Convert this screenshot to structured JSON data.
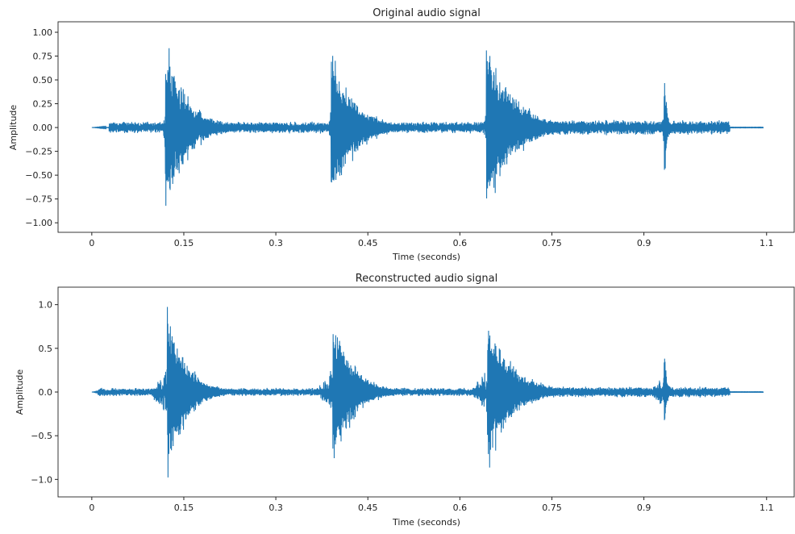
{
  "chart_data": [
    {
      "type": "line",
      "title": "Original audio signal",
      "xlabel": "Time (seconds)",
      "ylabel": "Amplitude",
      "xlim": [
        -0.055,
        1.145
      ],
      "ylim": [
        -1.1,
        1.11
      ],
      "xticks": [
        0,
        0.15,
        0.3,
        0.45,
        0.6,
        0.75,
        0.9,
        1.1
      ],
      "xtick_labels": [
        "0",
        "0.15",
        "0.3",
        "0.45",
        "0.6",
        "0.75",
        "0.9",
        "1.1"
      ],
      "yticks": [
        1.0,
        0.75,
        0.5,
        0.25,
        0.0,
        -0.25,
        -0.5,
        -0.75,
        -1.0
      ],
      "ytick_labels": [
        "1.00",
        "0.75",
        "0.50",
        "0.25",
        "0.00",
        "−0.25",
        "−0.50",
        "−0.75",
        "−1.00"
      ],
      "color": "#1f77b4",
      "signal": {
        "start": 0.0,
        "end": 1.095,
        "noise_start": 0.028,
        "noise_end": 1.04,
        "noise_floor": 0.045,
        "pre_rise": 0.004,
        "events": [
          {
            "onset": 0.12,
            "peak": 1.0,
            "decay": 0.035
          },
          {
            "onset": 0.39,
            "peak": 1.0,
            "decay": 0.035
          },
          {
            "onset": 0.643,
            "peak": 1.0,
            "decay": 0.045
          },
          {
            "onset": 0.933,
            "peak": 0.83,
            "decay": 0.004
          }
        ]
      }
    },
    {
      "type": "line",
      "title": "Reconstructed audio signal",
      "xlabel": "Time (seconds)",
      "ylabel": "Amplitude",
      "xlim": [
        -0.055,
        1.145
      ],
      "ylim": [
        -1.2,
        1.2
      ],
      "xticks": [
        0,
        0.15,
        0.3,
        0.45,
        0.6,
        0.75,
        0.9,
        1.1
      ],
      "xtick_labels": [
        "0",
        "0.15",
        "0.3",
        "0.45",
        "0.6",
        "0.75",
        "0.9",
        "1.1"
      ],
      "yticks": [
        1.0,
        0.5,
        0.0,
        -0.5,
        -1.0
      ],
      "ytick_labels": [
        "1.0",
        "0.5",
        "0.0",
        "−0.5",
        "−1.0"
      ],
      "color": "#1f77b4",
      "signal": {
        "start": 0.0,
        "end": 1.095,
        "noise_start": 0.01,
        "noise_end": 1.04,
        "noise_floor": 0.035,
        "pre_rise": 0.03,
        "events": [
          {
            "onset": 0.123,
            "peak": 1.1,
            "decay": 0.03
          },
          {
            "onset": 0.393,
            "peak": 0.97,
            "decay": 0.032
          },
          {
            "onset": 0.645,
            "peak": 0.97,
            "decay": 0.04
          },
          {
            "onset": 0.933,
            "peak": 0.68,
            "decay": 0.004
          }
        ]
      }
    }
  ]
}
